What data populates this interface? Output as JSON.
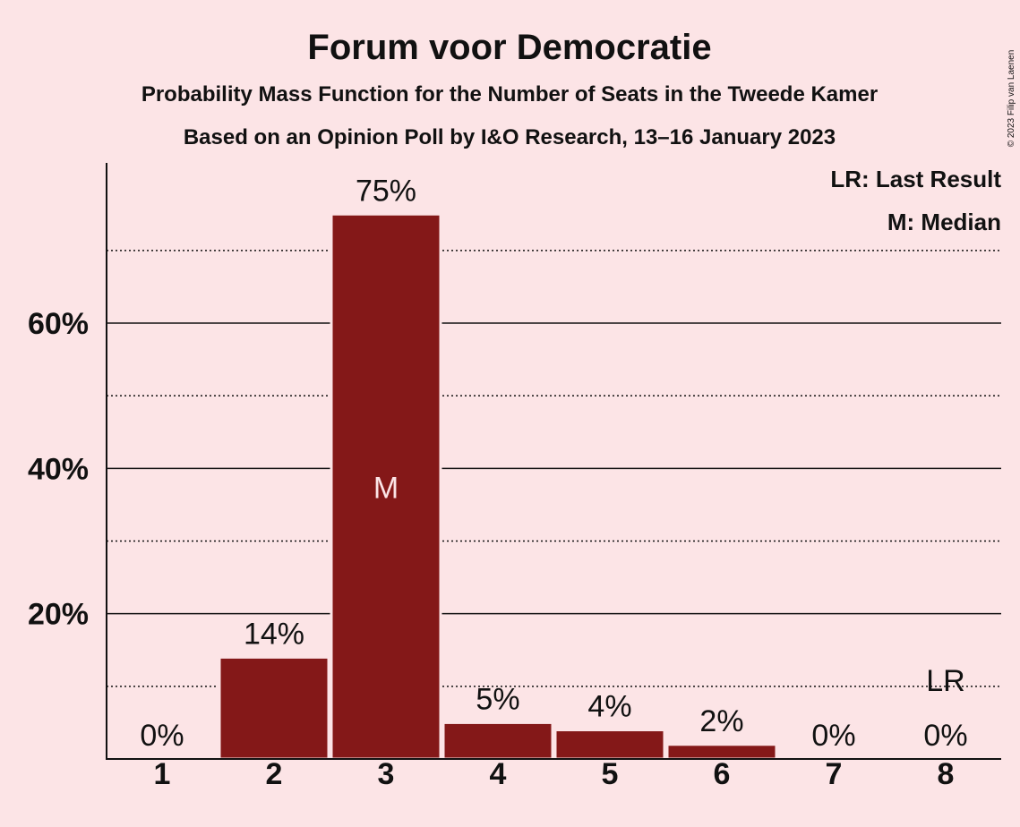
{
  "title": "Forum voor Democratie",
  "subtitle": "Probability Mass Function for the Number of Seats in the Tweede Kamer",
  "subtitle2": "Based on an Opinion Poll by I&O Research, 13–16 January 2023",
  "copyright": "© 2023 Filip van Laenen",
  "legend": {
    "last_result": "LR: Last Result",
    "median": "M: Median"
  },
  "colors": {
    "background": "#fce4e6",
    "bar": "#841818",
    "text": "#111111",
    "median_marker": "#fce4e6"
  },
  "chart_data": {
    "type": "bar",
    "categories": [
      "1",
      "2",
      "3",
      "4",
      "5",
      "6",
      "7",
      "8"
    ],
    "values": [
      0,
      14,
      75,
      5,
      4,
      2,
      0,
      0
    ],
    "value_labels": [
      "0%",
      "14%",
      "75%",
      "5%",
      "4%",
      "2%",
      "0%",
      "0%"
    ],
    "ylim": [
      0,
      80
    ],
    "y_ticks": [
      20,
      40,
      60
    ],
    "y_tick_labels": [
      "20%",
      "40%",
      "60%"
    ],
    "y_minor_gridlines": [
      10,
      30,
      50,
      70
    ],
    "median_category": "3",
    "median_marker": "M",
    "last_result_category": "8",
    "last_result_marker": "LR",
    "legend_position": "top-right",
    "grid": true
  }
}
